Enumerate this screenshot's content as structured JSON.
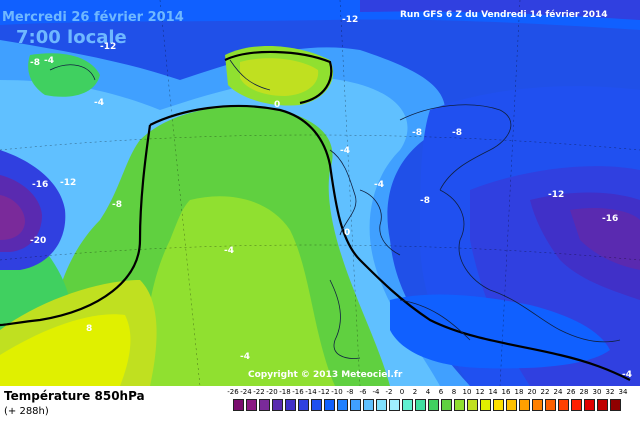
{
  "header": {
    "date": "Mercredi 26 février 2014",
    "time": "7:00 locale",
    "run": "Run GFS 6 Z du Vendredi 14 février 2014"
  },
  "footer": {
    "variable": "Température 850hPa",
    "lead": "(+ 288h)",
    "copyright": "Copyright © 2013 Meteociel.fr"
  },
  "map_labels": [
    "-12",
    "-4",
    "-12",
    "-8",
    "-4",
    "0",
    "-4",
    "-8",
    "-4",
    "-8",
    "0",
    "-8",
    "-16",
    "-12",
    "-8",
    "-16",
    "-20",
    "-4",
    "-4",
    "8",
    "-12",
    "-4"
  ],
  "legend": {
    "ticks": [
      "-26",
      "-24",
      "-22",
      "-20",
      "-18",
      "-16",
      "-14",
      "-12",
      "-10",
      "-8",
      "-6",
      "-4",
      "-2",
      "0",
      "2",
      "4",
      "6",
      "8",
      "10",
      "12",
      "14",
      "16",
      "18",
      "20",
      "22",
      "24",
      "26",
      "28",
      "30",
      "32",
      "34"
    ],
    "colors": [
      "#7a0d6e",
      "#8a1a82",
      "#7a2a9a",
      "#5a2ab0",
      "#4030c8",
      "#3040e0",
      "#2050f0",
      "#1060ff",
      "#2080ff",
      "#40a0ff",
      "#60c0ff",
      "#80e0ff",
      "#a0f0ff",
      "#60f0d0",
      "#40e0a0",
      "#40d060",
      "#60d040",
      "#90e030",
      "#c0e020",
      "#e0f000",
      "#ffe000",
      "#ffc000",
      "#ffa000",
      "#ff8000",
      "#ff6000",
      "#ff4000",
      "#ff2000",
      "#e00000",
      "#c00000",
      "#900000"
    ]
  }
}
